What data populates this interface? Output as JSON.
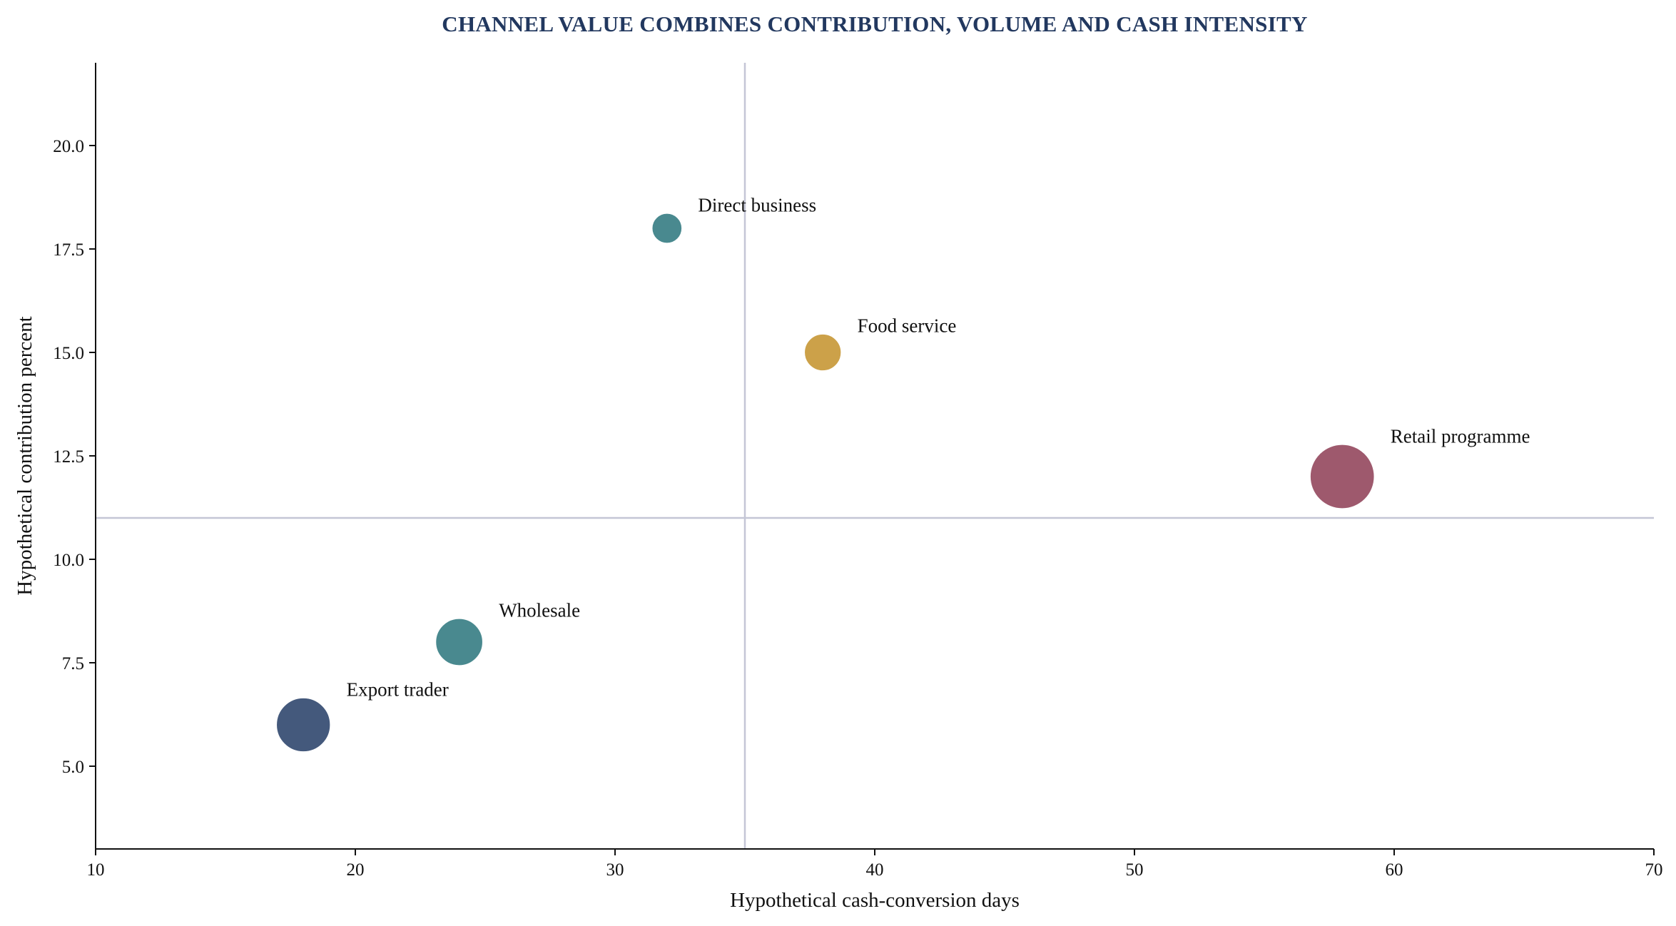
{
  "chart_data": {
    "type": "scatter",
    "title": "CHANNEL VALUE COMBINES CONTRIBUTION, VOLUME AND CASH INTENSITY",
    "xlabel": "Hypothetical cash-conversion days",
    "ylabel": "Hypothetical contribution percent",
    "xlim": [
      10,
      70
    ],
    "ylim": [
      3,
      22
    ],
    "x_ticks": [
      10,
      20,
      30,
      40,
      50,
      60,
      70
    ],
    "y_ticks": [
      "5.0",
      "7.5",
      "10.0",
      "12.5",
      "15.0",
      "17.5",
      "20.0"
    ],
    "grid": false,
    "reference_lines": {
      "x": 35,
      "y": 11
    },
    "points": [
      {
        "label": "Direct business",
        "x": 32,
        "y": 18,
        "size": 0.45,
        "color": "#3a8086"
      },
      {
        "label": "Food service",
        "x": 38,
        "y": 15,
        "size": 0.55,
        "color": "#c89a3a"
      },
      {
        "label": "Retail programme",
        "x": 58,
        "y": 12,
        "size": 0.95,
        "color": "#964c61"
      },
      {
        "label": "Wholesale",
        "x": 24,
        "y": 8,
        "size": 0.7,
        "color": "#3a8086"
      },
      {
        "label": "Export trader",
        "x": 18,
        "y": 6,
        "size": 0.8,
        "color": "#354b71"
      }
    ]
  }
}
